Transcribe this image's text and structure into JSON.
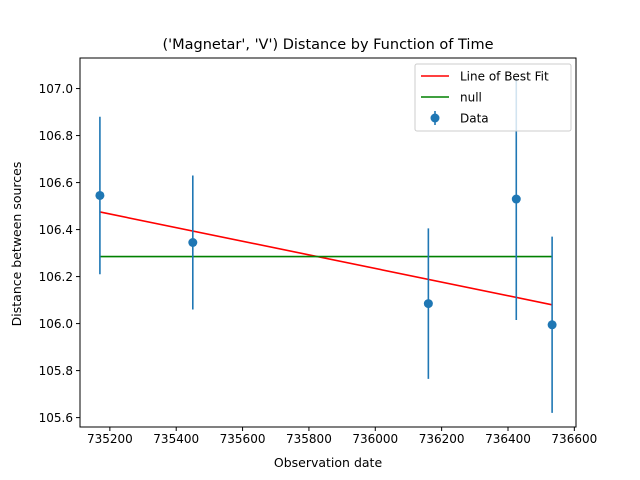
{
  "chart_data": {
    "type": "scatter",
    "title": "('Magnetar', 'V') Distance by Function of Time",
    "xlabel": "Observation date",
    "ylabel": "Distance between sources",
    "xlim": [
      735110,
      736605
    ],
    "ylim": [
      105.56,
      107.13
    ],
    "x_ticks": [
      735200,
      735400,
      735600,
      735800,
      736000,
      736200,
      736400,
      736600
    ],
    "y_ticks": [
      105.6,
      105.8,
      106.0,
      106.2,
      106.4,
      106.6,
      106.8,
      107.0
    ],
    "x_tick_labels": [
      "735200",
      "735400",
      "735600",
      "735800",
      "736000",
      "736200",
      "736400",
      "736600"
    ],
    "y_tick_labels": [
      "105.6",
      "105.8",
      "106.0",
      "106.2",
      "106.4",
      "106.6",
      "106.8",
      "107.0"
    ],
    "grid": false,
    "legend_position": "top-right",
    "series": [
      {
        "name": "Line of Best Fit",
        "kind": "line",
        "color": "#ff0000",
        "points": [
          [
            735170,
            106.475
          ],
          [
            736533,
            106.08
          ]
        ]
      },
      {
        "name": "null",
        "kind": "line",
        "color": "#008000",
        "points": [
          [
            735170,
            106.285
          ],
          [
            736533,
            106.285
          ]
        ]
      },
      {
        "name": "Data",
        "kind": "errorbar",
        "color": "#1f77b4",
        "points": [
          {
            "x": 735170,
            "y": 106.545,
            "yerr": 0.335
          },
          {
            "x": 735450,
            "y": 106.345,
            "yerr": 0.285
          },
          {
            "x": 736160,
            "y": 106.085,
            "yerr": 0.32
          },
          {
            "x": 736425,
            "y": 106.53,
            "yerr": 0.515
          },
          {
            "x": 736533,
            "y": 105.995,
            "yerr": 0.375
          }
        ]
      }
    ]
  }
}
